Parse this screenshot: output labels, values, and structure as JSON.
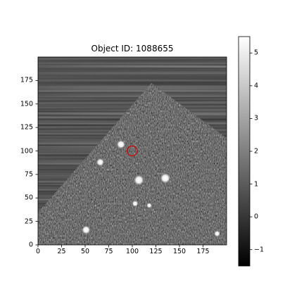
{
  "figure": {
    "title": "Object ID: 1088655"
  },
  "image_axes": {
    "x_ticks": [
      "0",
      "25",
      "50",
      "75",
      "100",
      "125",
      "150",
      "175"
    ],
    "y_ticks": [
      "0",
      "25",
      "50",
      "75",
      "100",
      "125",
      "150",
      "175"
    ]
  },
  "colorbar": {
    "ticks": [
      "−1",
      "0",
      "1",
      "2",
      "3",
      "4",
      "5"
    ],
    "range": [
      -1.5,
      5.5
    ],
    "colormap": "gray"
  },
  "marker": {
    "shape": "circle",
    "color": "#cc0000",
    "x": 100,
    "y": 100
  },
  "chart_data": {
    "type": "heatmap",
    "title": "Object ID: 1088655",
    "xlim": [
      0,
      200
    ],
    "ylim": [
      0,
      200
    ],
    "colorbar_range": [
      -1.5,
      5.5
    ],
    "sources": [
      {
        "x": 107,
        "y": 69,
        "brightness": 5
      },
      {
        "x": 135,
        "y": 71,
        "brightness": 5
      },
      {
        "x": 88,
        "y": 107,
        "brightness": 4
      },
      {
        "x": 66,
        "y": 88,
        "brightness": 3.5
      },
      {
        "x": 51,
        "y": 16,
        "brightness": 4
      },
      {
        "x": 103,
        "y": 44,
        "brightness": 2.5
      },
      {
        "x": 118,
        "y": 42,
        "brightness": 2
      },
      {
        "x": 190,
        "y": 12,
        "brightness": 2.5
      }
    ]
  }
}
